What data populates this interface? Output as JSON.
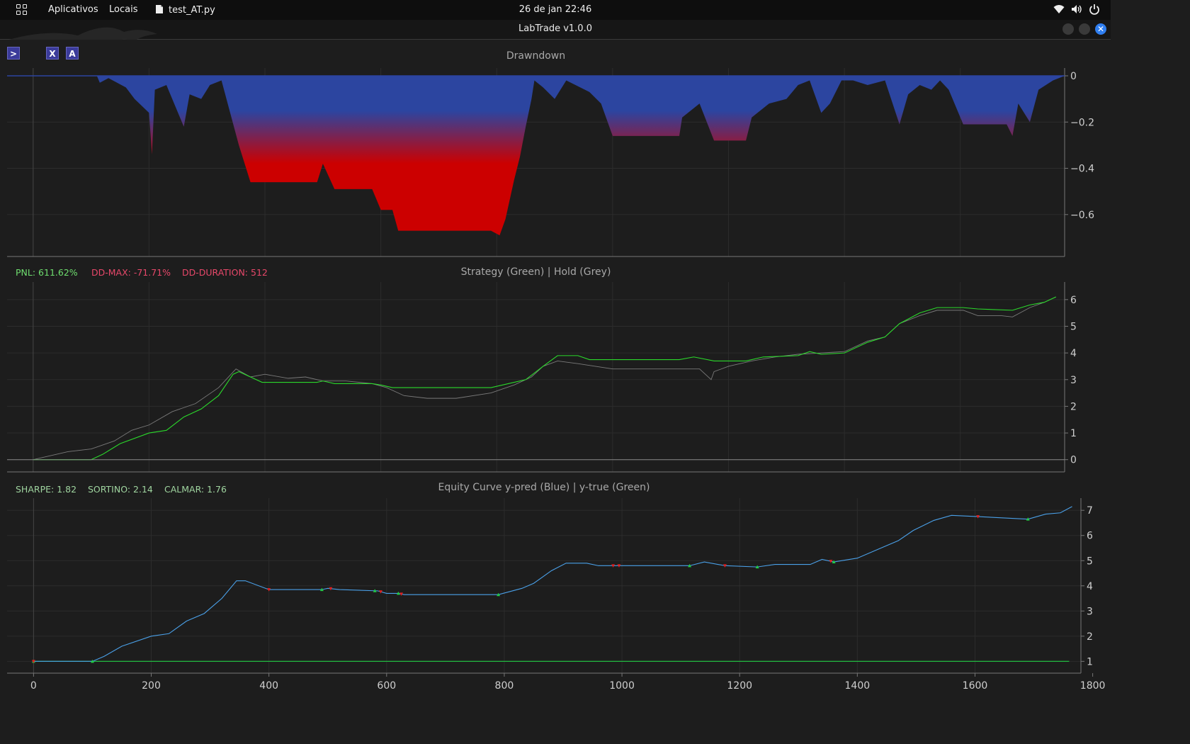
{
  "topbar": {
    "apps_label": "Aplicativos",
    "places_label": "Locais",
    "active_app": "test_AT.py",
    "clock": "26 de jan  22:46"
  },
  "window": {
    "title": "LabTrade v1.0.0"
  },
  "toolbar": {
    "btn_run": ">",
    "btn_x": "X",
    "btn_a": "A"
  },
  "colors": {
    "background": "#1d1d1d",
    "strategy": "#2bd92b",
    "hold": "#7a7a7a",
    "equity": "#4aa0e8",
    "drawdown_top": "#2c45a0",
    "drawdown_bottom": "#cc0000",
    "pnl_green": "#6fdf6f",
    "metric_red": "#e8486a",
    "metric_green": "#9fd49f",
    "buy_marker": "#22cc44",
    "sell_marker": "#e02020"
  },
  "chart_data": [
    {
      "type": "area",
      "title": "Drawndown",
      "xlim": [
        -45,
        1780
      ],
      "ylim": [
        -0.76,
        0.0
      ],
      "yticks": [
        0,
        -0.2,
        -0.4,
        -0.6
      ],
      "ytick_labels": [
        "0",
        "−0.2",
        "−0.4",
        "−0.6"
      ],
      "series": [
        {
          "values_xy": [
            [
              -45,
              0
            ],
            [
              110,
              0
            ],
            [
              115,
              -0.03
            ],
            [
              130,
              -0.01
            ],
            [
              160,
              -0.05
            ],
            [
              175,
              -0.1
            ],
            [
              200,
              -0.16
            ],
            [
              205,
              -0.34
            ],
            [
              210,
              -0.06
            ],
            [
              230,
              -0.04
            ],
            [
              260,
              -0.22
            ],
            [
              270,
              -0.08
            ],
            [
              290,
              -0.1
            ],
            [
              305,
              -0.04
            ],
            [
              325,
              -0.02
            ],
            [
              340,
              -0.16
            ],
            [
              355,
              -0.3
            ],
            [
              375,
              -0.46
            ],
            [
              490,
              -0.46
            ],
            [
              500,
              -0.38
            ],
            [
              520,
              -0.49
            ],
            [
              585,
              -0.49
            ],
            [
              600,
              -0.58
            ],
            [
              620,
              -0.58
            ],
            [
              630,
              -0.67
            ],
            [
              790,
              -0.67
            ],
            [
              805,
              -0.69
            ],
            [
              815,
              -0.62
            ],
            [
              830,
              -0.45
            ],
            [
              840,
              -0.35
            ],
            [
              850,
              -0.22
            ],
            [
              860,
              -0.1
            ],
            [
              865,
              -0.02
            ],
            [
              880,
              -0.05
            ],
            [
              900,
              -0.1
            ],
            [
              920,
              -0.02
            ],
            [
              960,
              -0.07
            ],
            [
              980,
              -0.12
            ],
            [
              990,
              -0.19
            ],
            [
              1000,
              -0.26
            ],
            [
              1115,
              -0.26
            ],
            [
              1120,
              -0.18
            ],
            [
              1150,
              -0.12
            ],
            [
              1175,
              -0.28
            ],
            [
              1230,
              -0.28
            ],
            [
              1240,
              -0.18
            ],
            [
              1270,
              -0.12
            ],
            [
              1300,
              -0.1
            ],
            [
              1320,
              -0.04
            ],
            [
              1340,
              -0.02
            ],
            [
              1360,
              -0.16
            ],
            [
              1375,
              -0.12
            ],
            [
              1395,
              -0.02
            ],
            [
              1415,
              -0.02
            ],
            [
              1440,
              -0.04
            ],
            [
              1470,
              -0.02
            ],
            [
              1495,
              -0.21
            ],
            [
              1510,
              -0.08
            ],
            [
              1530,
              -0.04
            ],
            [
              1550,
              -0.06
            ],
            [
              1565,
              -0.02
            ],
            [
              1580,
              -0.06
            ],
            [
              1605,
              -0.21
            ],
            [
              1680,
              -0.21
            ],
            [
              1690,
              -0.26
            ],
            [
              1700,
              -0.12
            ],
            [
              1720,
              -0.2
            ],
            [
              1735,
              -0.06
            ],
            [
              1760,
              -0.02
            ],
            [
              1780,
              0
            ]
          ]
        }
      ]
    },
    {
      "type": "line",
      "title": "Strategy (Green) | Hold (Grey)",
      "xlim": [
        -45,
        1780
      ],
      "ylim": [
        -0.3,
        6.5
      ],
      "yticks": [
        0,
        1,
        2,
        3,
        4,
        5,
        6
      ],
      "series": [
        {
          "name": "Strategy",
          "values_xy": [
            [
              0,
              0
            ],
            [
              100,
              0
            ],
            [
              120,
              0.2
            ],
            [
              150,
              0.6
            ],
            [
              200,
              1.0
            ],
            [
              230,
              1.1
            ],
            [
              260,
              1.6
            ],
            [
              290,
              1.9
            ],
            [
              320,
              2.4
            ],
            [
              345,
              3.2
            ],
            [
              355,
              3.3
            ],
            [
              395,
              2.9
            ],
            [
              490,
              2.9
            ],
            [
              500,
              2.95
            ],
            [
              520,
              2.85
            ],
            [
              585,
              2.85
            ],
            [
              600,
              2.8
            ],
            [
              620,
              2.7
            ],
            [
              630,
              2.7
            ],
            [
              790,
              2.7
            ],
            [
              830,
              2.9
            ],
            [
              850,
              3.0
            ],
            [
              880,
              3.5
            ],
            [
              905,
              3.9
            ],
            [
              940,
              3.9
            ],
            [
              960,
              3.75
            ],
            [
              1115,
              3.75
            ],
            [
              1140,
              3.85
            ],
            [
              1175,
              3.7
            ],
            [
              1230,
              3.7
            ],
            [
              1260,
              3.85
            ],
            [
              1320,
              3.9
            ],
            [
              1340,
              4.05
            ],
            [
              1360,
              3.95
            ],
            [
              1400,
              4.0
            ],
            [
              1440,
              4.4
            ],
            [
              1470,
              4.6
            ],
            [
              1495,
              5.1
            ],
            [
              1530,
              5.5
            ],
            [
              1560,
              5.7
            ],
            [
              1605,
              5.7
            ],
            [
              1630,
              5.65
            ],
            [
              1690,
              5.6
            ],
            [
              1720,
              5.8
            ],
            [
              1745,
              5.9
            ],
            [
              1765,
              6.1
            ]
          ]
        },
        {
          "name": "Hold",
          "values_xy": [
            [
              0,
              0
            ],
            [
              60,
              0.3
            ],
            [
              100,
              0.4
            ],
            [
              140,
              0.7
            ],
            [
              170,
              1.1
            ],
            [
              200,
              1.3
            ],
            [
              240,
              1.8
            ],
            [
              280,
              2.1
            ],
            [
              320,
              2.7
            ],
            [
              350,
              3.4
            ],
            [
              375,
              3.1
            ],
            [
              400,
              3.2
            ],
            [
              440,
              3.05
            ],
            [
              470,
              3.1
            ],
            [
              500,
              2.95
            ],
            [
              540,
              2.95
            ],
            [
              585,
              2.85
            ],
            [
              610,
              2.7
            ],
            [
              640,
              2.4
            ],
            [
              680,
              2.3
            ],
            [
              730,
              2.3
            ],
            [
              790,
              2.5
            ],
            [
              830,
              2.8
            ],
            [
              860,
              3.1
            ],
            [
              880,
              3.5
            ],
            [
              905,
              3.7
            ],
            [
              940,
              3.6
            ],
            [
              970,
              3.5
            ],
            [
              1000,
              3.4
            ],
            [
              1050,
              3.4
            ],
            [
              1110,
              3.4
            ],
            [
              1150,
              3.4
            ],
            [
              1170,
              3.0
            ],
            [
              1175,
              3.3
            ],
            [
              1200,
              3.5
            ],
            [
              1240,
              3.7
            ],
            [
              1280,
              3.85
            ],
            [
              1320,
              3.95
            ],
            [
              1360,
              4.0
            ],
            [
              1400,
              4.05
            ],
            [
              1440,
              4.45
            ],
            [
              1470,
              4.6
            ],
            [
              1495,
              5.1
            ],
            [
              1530,
              5.4
            ],
            [
              1560,
              5.6
            ],
            [
              1605,
              5.6
            ],
            [
              1630,
              5.4
            ],
            [
              1670,
              5.4
            ],
            [
              1690,
              5.35
            ],
            [
              1720,
              5.7
            ],
            [
              1745,
              5.9
            ],
            [
              1765,
              6.1
            ]
          ]
        }
      ]
    },
    {
      "type": "line",
      "title": "Equity Curve y-pred (Blue) | y-true (Green)",
      "xlim": [
        -45,
        1780
      ],
      "ylim": [
        0.7,
        7.4
      ],
      "yticks": [
        1,
        2,
        3,
        4,
        5,
        6,
        7
      ],
      "xticks": [
        0,
        200,
        400,
        600,
        800,
        1000,
        1200,
        1400,
        1600,
        1800
      ],
      "series": [
        {
          "name": "y-pred",
          "values_xy": [
            [
              0,
              1.0
            ],
            [
              100,
              1.0
            ],
            [
              120,
              1.2
            ],
            [
              150,
              1.6
            ],
            [
              200,
              2.0
            ],
            [
              230,
              2.1
            ],
            [
              260,
              2.6
            ],
            [
              290,
              2.9
            ],
            [
              320,
              3.5
            ],
            [
              345,
              4.2
            ],
            [
              360,
              4.2
            ],
            [
              400,
              3.85
            ],
            [
              490,
              3.85
            ],
            [
              500,
              3.9
            ],
            [
              520,
              3.85
            ],
            [
              585,
              3.8
            ],
            [
              600,
              3.7
            ],
            [
              620,
              3.7
            ],
            [
              630,
              3.65
            ],
            [
              790,
              3.65
            ],
            [
              830,
              3.9
            ],
            [
              850,
              4.1
            ],
            [
              880,
              4.6
            ],
            [
              905,
              4.9
            ],
            [
              940,
              4.9
            ],
            [
              960,
              4.8
            ],
            [
              1115,
              4.8
            ],
            [
              1140,
              4.95
            ],
            [
              1175,
              4.8
            ],
            [
              1230,
              4.75
            ],
            [
              1260,
              4.85
            ],
            [
              1320,
              4.85
            ],
            [
              1340,
              5.05
            ],
            [
              1360,
              4.95
            ],
            [
              1400,
              5.1
            ],
            [
              1440,
              5.5
            ],
            [
              1470,
              5.8
            ],
            [
              1495,
              6.2
            ],
            [
              1530,
              6.6
            ],
            [
              1560,
              6.8
            ],
            [
              1605,
              6.75
            ],
            [
              1690,
              6.65
            ],
            [
              1720,
              6.85
            ],
            [
              1745,
              6.9
            ],
            [
              1765,
              7.15
            ]
          ]
        },
        {
          "name": "y-true",
          "values_xy": [
            [
              0,
              1.0
            ],
            [
              1760,
              1.0
            ]
          ]
        }
      ],
      "buy_markers": [
        0,
        100,
        490,
        580,
        620,
        790,
        1115,
        1230,
        1360,
        1690
      ],
      "sell_markers": [
        0,
        400,
        505,
        590,
        625,
        985,
        995,
        1175,
        1355,
        1605
      ]
    }
  ],
  "metrics": {
    "pnl": "PNL: 611.62%",
    "dd_max": "DD-MAX: -71.71%",
    "dd_duration": "DD-DURATION: 512",
    "sharpe": "SHARPE: 1.82",
    "sortino": "SORTINO: 2.14",
    "calmar": "CALMAR: 1.76"
  }
}
